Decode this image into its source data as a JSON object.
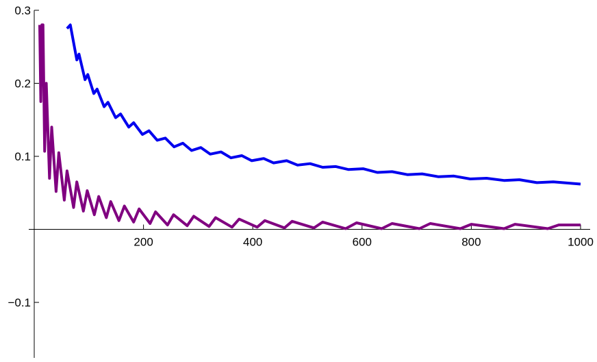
{
  "chart_data": {
    "type": "line",
    "xlim": [
      0,
      1000
    ],
    "ylim": [
      -0.176,
      0.3
    ],
    "xticks": [
      200,
      400,
      600,
      800,
      1000
    ],
    "yticks": [
      {
        "value": -0.1,
        "label": "−0.1"
      },
      0.1,
      0.2,
      0.3
    ],
    "series": [
      {
        "color": "#0000ee",
        "x": [
          60,
          66,
          78,
          82,
          93,
          98,
          109,
          115,
          128,
          135,
          149,
          158,
          173,
          182,
          198,
          210,
          225,
          240,
          256,
          272,
          288,
          305,
          322,
          342,
          360,
          380,
          398,
          420,
          438,
          462,
          482,
          505,
          528,
          552,
          575,
          602,
          628,
          655,
          683,
          710,
          740,
          768,
          798,
          828,
          860,
          888,
          920,
          950,
          1000
        ],
        "values": [
          0.275,
          0.28,
          0.232,
          0.24,
          0.205,
          0.212,
          0.186,
          0.192,
          0.168,
          0.174,
          0.153,
          0.158,
          0.14,
          0.146,
          0.13,
          0.135,
          0.122,
          0.125,
          0.113,
          0.118,
          0.108,
          0.112,
          0.103,
          0.106,
          0.098,
          0.101,
          0.094,
          0.097,
          0.091,
          0.094,
          0.088,
          0.09,
          0.085,
          0.086,
          0.082,
          0.083,
          0.078,
          0.079,
          0.075,
          0.076,
          0.072,
          0.073,
          0.069,
          0.07,
          0.067,
          0.068,
          0.064,
          0.065,
          0.062
        ]
      },
      {
        "color": "#800080",
        "x": [
          10,
          12,
          14,
          16,
          19,
          22,
          28,
          32,
          40,
          45,
          55,
          60,
          72,
          78,
          90,
          97,
          110,
          118,
          132,
          140,
          155,
          165,
          182,
          192,
          212,
          222,
          244,
          255,
          280,
          292,
          320,
          332,
          362,
          375,
          408,
          422,
          458,
          472,
          512,
          528,
          570,
          590,
          636,
          655,
          705,
          725,
          780,
          800,
          860,
          880,
          940,
          960,
          1000
        ],
        "values": [
          0.28,
          0.175,
          0.28,
          0.28,
          0.107,
          0.2,
          0.07,
          0.14,
          0.052,
          0.105,
          0.04,
          0.08,
          0.03,
          0.065,
          0.025,
          0.053,
          0.02,
          0.045,
          0.016,
          0.038,
          0.012,
          0.032,
          0.01,
          0.028,
          0.008,
          0.024,
          0.006,
          0.02,
          0.005,
          0.018,
          0.004,
          0.016,
          0.003,
          0.014,
          0.003,
          0.012,
          0.002,
          0.011,
          0.002,
          0.01,
          0.001,
          0.009,
          0.001,
          0.008,
          0.001,
          0.008,
          0.001,
          0.007,
          0.001,
          0.007,
          0.001,
          0.006,
          0.006
        ]
      }
    ]
  }
}
